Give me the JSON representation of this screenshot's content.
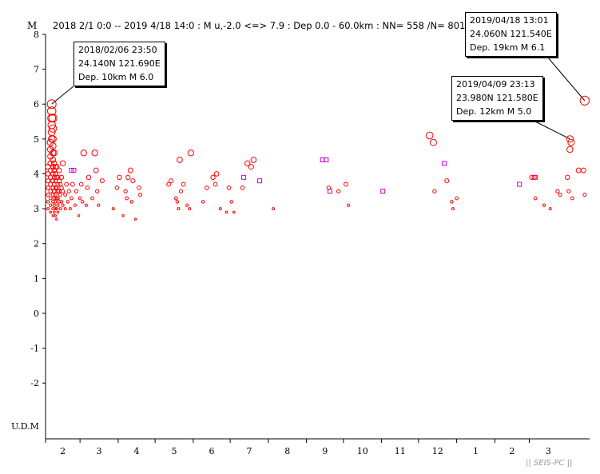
{
  "chart_data": {
    "type": "scatter",
    "title": "2018 2/1 0:0 -- 2019 4/18 14:0  : M u,-2.0 <=> 7.9   :  Dep 0.0 - 60.0km :  NN= 558 /N= 801",
    "ylabel": "M",
    "ylim": [
      -3.6,
      8
    ],
    "yticks": [
      8,
      7,
      6,
      5,
      4,
      3,
      2,
      1,
      0,
      -1,
      -2
    ],
    "baseline_label": "U.D.M",
    "x_month_labels": [
      "2",
      "3",
      "4",
      "5",
      "6",
      "7",
      "8",
      "9",
      "10",
      "11",
      "12",
      "1",
      "2",
      "3"
    ],
    "watermark": "|| SEIS-PC ||",
    "colors": {
      "primary": "#ff0000",
      "secondary": "#cc00cc",
      "axis": "#000000"
    },
    "x_range_days": [
      0,
      442
    ],
    "series": [
      {
        "color": "#ff0000",
        "points": [
          [
            2,
            3.0
          ],
          [
            2,
            3.2
          ],
          [
            2,
            3.4
          ],
          [
            2,
            3.6
          ],
          [
            2,
            3.8
          ],
          [
            2,
            4.0
          ],
          [
            2,
            4.2
          ],
          [
            4,
            2.9
          ],
          [
            4,
            3.1
          ],
          [
            4,
            3.3
          ],
          [
            4,
            3.5
          ],
          [
            4,
            3.7
          ],
          [
            4,
            3.9
          ],
          [
            4,
            4.1
          ],
          [
            4,
            4.3
          ],
          [
            4,
            4.5
          ],
          [
            4,
            4.7
          ],
          [
            4,
            4.9
          ],
          [
            5,
            5.0
          ],
          [
            5,
            5.2
          ],
          [
            5,
            5.4
          ],
          [
            5,
            5.6
          ],
          [
            5,
            5.8
          ],
          [
            5,
            6.0
          ],
          [
            6,
            2.8
          ],
          [
            6,
            3.0
          ],
          [
            6,
            3.2
          ],
          [
            6,
            3.4
          ],
          [
            6,
            3.6
          ],
          [
            6,
            3.8
          ],
          [
            6,
            4.0
          ],
          [
            6,
            4.2
          ],
          [
            6,
            4.4
          ],
          [
            6,
            4.6
          ],
          [
            6,
            4.8
          ],
          [
            6,
            5.0
          ],
          [
            6,
            5.3
          ],
          [
            6,
            5.6
          ],
          [
            7,
            2.9
          ],
          [
            7,
            3.1
          ],
          [
            7,
            3.3
          ],
          [
            7,
            3.5
          ],
          [
            7,
            3.7
          ],
          [
            7,
            3.9
          ],
          [
            7,
            4.1
          ],
          [
            7,
            4.3
          ],
          [
            7,
            4.6
          ],
          [
            8,
            2.8
          ],
          [
            8,
            3.0
          ],
          [
            8,
            3.2
          ],
          [
            8,
            3.4
          ],
          [
            8,
            3.6
          ],
          [
            8,
            3.8
          ],
          [
            8,
            4.0
          ],
          [
            8,
            4.2
          ],
          [
            9,
            2.7
          ],
          [
            9,
            3.0
          ],
          [
            9,
            3.3
          ],
          [
            9,
            3.6
          ],
          [
            9,
            3.9
          ],
          [
            9,
            4.2
          ],
          [
            10,
            2.9
          ],
          [
            10,
            3.1
          ],
          [
            10,
            3.3
          ],
          [
            10,
            3.5
          ],
          [
            10,
            3.7
          ],
          [
            10,
            3.9
          ],
          [
            11,
            3.2
          ],
          [
            11,
            3.5
          ],
          [
            11,
            3.8
          ],
          [
            11,
            4.1
          ],
          [
            12,
            3.0
          ],
          [
            12,
            3.4
          ],
          [
            12,
            3.7
          ],
          [
            13,
            3.2
          ],
          [
            13,
            3.6
          ],
          [
            13,
            3.9
          ],
          [
            14,
            3.1
          ],
          [
            14,
            3.5
          ],
          [
            14,
            4.3
          ],
          [
            16,
            3.0
          ],
          [
            16,
            3.4
          ],
          [
            17,
            3.7
          ],
          [
            18,
            3.2
          ],
          [
            19,
            3.5
          ],
          [
            20,
            3.0
          ],
          [
            21,
            3.3
          ],
          [
            22,
            3.7
          ],
          [
            24,
            3.1
          ],
          [
            25,
            3.5
          ],
          [
            27,
            2.8
          ],
          [
            28,
            3.3
          ],
          [
            29,
            3.7
          ],
          [
            30,
            3.2
          ],
          [
            31,
            4.6
          ],
          [
            33,
            3.1
          ],
          [
            34,
            3.6
          ],
          [
            35,
            3.9
          ],
          [
            38,
            3.3
          ],
          [
            40,
            4.6
          ],
          [
            41,
            4.1
          ],
          [
            42,
            3.5
          ],
          [
            43,
            3.1
          ],
          [
            46,
            3.8
          ],
          [
            55,
            3.0
          ],
          [
            58,
            3.6
          ],
          [
            60,
            3.9
          ],
          [
            63,
            2.8
          ],
          [
            65,
            3.5
          ],
          [
            66,
            3.3
          ],
          [
            67,
            3.9
          ],
          [
            69,
            4.1
          ],
          [
            70,
            3.2
          ],
          [
            71,
            3.8
          ],
          [
            73,
            2.7
          ],
          [
            76,
            3.6
          ],
          [
            77,
            3.4
          ],
          [
            100,
            3.7
          ],
          [
            102,
            3.8
          ],
          [
            106,
            3.3
          ],
          [
            107,
            3.2
          ],
          [
            108,
            3.0
          ],
          [
            109,
            4.4
          ],
          [
            110,
            3.5
          ],
          [
            112,
            3.7
          ],
          [
            115,
            3.1
          ],
          [
            117,
            3.0
          ],
          [
            118,
            4.6
          ],
          [
            128,
            3.2
          ],
          [
            131,
            3.6
          ],
          [
            136,
            3.9
          ],
          [
            138,
            3.7
          ],
          [
            139,
            4.0
          ],
          [
            142,
            3.0
          ],
          [
            147,
            2.9
          ],
          [
            149,
            3.6
          ],
          [
            151,
            3.2
          ],
          [
            153,
            2.9
          ],
          [
            160,
            3.6
          ],
          [
            164,
            4.3
          ],
          [
            167,
            4.2
          ],
          [
            169,
            4.4
          ],
          [
            185,
            3.0
          ],
          [
            230,
            3.6
          ],
          [
            238,
            3.5
          ],
          [
            244,
            3.7
          ],
          [
            246,
            3.1
          ],
          [
            312,
            5.1
          ],
          [
            315,
            4.9
          ],
          [
            316,
            3.5
          ],
          [
            326,
            3.8
          ],
          [
            330,
            3.2
          ],
          [
            331,
            3.0
          ],
          [
            334,
            3.3
          ],
          [
            395,
            3.9
          ],
          [
            397,
            3.9
          ],
          [
            398,
            3.3
          ],
          [
            405,
            3.1
          ],
          [
            410,
            3.0
          ],
          [
            416,
            3.5
          ],
          [
            418,
            3.4
          ],
          [
            424,
            3.9
          ],
          [
            425,
            3.5
          ],
          [
            426,
            5.0
          ],
          [
            426,
            4.7
          ],
          [
            427,
            4.9
          ],
          [
            428,
            3.3
          ],
          [
            433,
            4.1
          ],
          [
            437,
            4.1
          ],
          [
            438,
            6.1
          ],
          [
            438,
            3.4
          ]
        ]
      },
      {
        "color": "#cc00cc",
        "points": [
          [
            21,
            4.1
          ],
          [
            23,
            4.1
          ],
          [
            161,
            3.9
          ],
          [
            174,
            3.8
          ],
          [
            225,
            4.4
          ],
          [
            228,
            4.4
          ],
          [
            231,
            3.5
          ],
          [
            274,
            3.5
          ],
          [
            324,
            4.3
          ],
          [
            385,
            3.7
          ],
          [
            398,
            3.9
          ]
        ]
      }
    ],
    "annotations": [
      {
        "lines": [
          "2018/02/06 23:50",
          "24.140N   121.690E",
          "Dep. 10km    M 6.0"
        ],
        "x": 5,
        "y": 6.0
      },
      {
        "lines": [
          "2019/04/18 13:01",
          "24.060N   121.540E",
          "Dep. 19km    M 6.1"
        ],
        "x": 438,
        "y": 6.1
      },
      {
        "lines": [
          "2019/04/09 23:13",
          "23.980N   121.580E",
          "Dep. 12km    M 5.0"
        ],
        "x": 426,
        "y": 5.0
      }
    ]
  }
}
